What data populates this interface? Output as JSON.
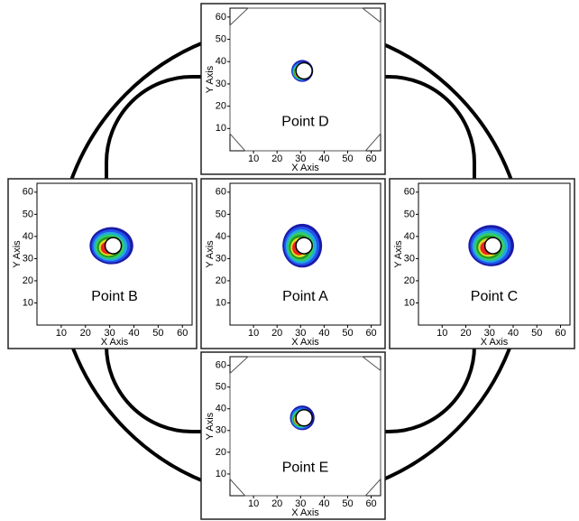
{
  "panels": [
    {
      "label": "Point D",
      "x_axis_label": "X Axis",
      "y_axis_label": "Y Axis",
      "xlim": [
        0,
        64
      ],
      "ylim": [
        0,
        64
      ],
      "xticks": [
        10,
        20,
        30,
        40,
        50,
        60
      ],
      "yticks": [
        10,
        20,
        30,
        40,
        50,
        60
      ]
    },
    {
      "label": "Point B",
      "x_axis_label": "X Axis",
      "y_axis_label": "Y Axis",
      "xlim": [
        0,
        64
      ],
      "ylim": [
        0,
        64
      ],
      "xticks": [
        10,
        20,
        30,
        40,
        50,
        60
      ],
      "yticks": [
        10,
        20,
        30,
        40,
        50,
        60
      ]
    },
    {
      "label": "Point A",
      "x_axis_label": "X Axis",
      "y_axis_label": "Y Axis",
      "xlim": [
        0,
        64
      ],
      "ylim": [
        0,
        64
      ],
      "xticks": [
        10,
        20,
        30,
        40,
        50,
        60
      ],
      "yticks": [
        10,
        20,
        30,
        40,
        50,
        60
      ]
    },
    {
      "label": "Point C",
      "x_axis_label": "X Axis",
      "y_axis_label": "Y Axis",
      "xlim": [
        0,
        64
      ],
      "ylim": [
        0,
        64
      ],
      "xticks": [
        10,
        20,
        30,
        40,
        50,
        60
      ],
      "yticks": [
        10,
        20,
        30,
        40,
        50,
        60
      ]
    },
    {
      "label": "Point E",
      "x_axis_label": "X Axis",
      "y_axis_label": "Y Axis",
      "xlim": [
        0,
        64
      ],
      "ylim": [
        0,
        64
      ],
      "xticks": [
        10,
        20,
        30,
        40,
        50,
        60
      ],
      "yticks": [
        10,
        20,
        30,
        40,
        50,
        60
      ]
    }
  ]
}
